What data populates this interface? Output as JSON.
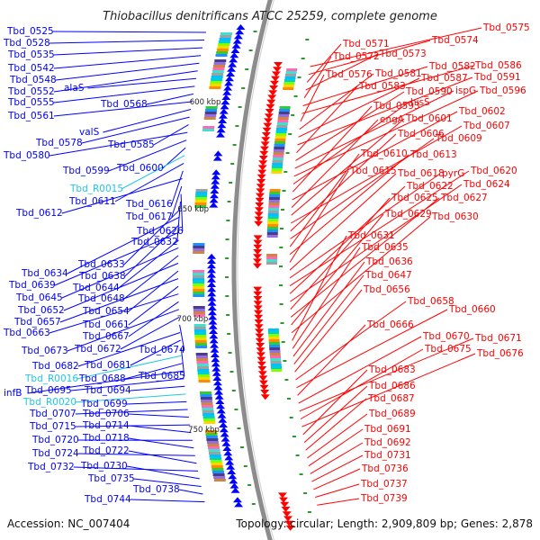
{
  "title": "Thiobacillus denitrificans ATCC 25259, complete genome",
  "footer": {
    "accession": "Accession: NC_007404",
    "topology": "Topology: circular; Length: 2,909,809 bp; Genes: 2,878"
  },
  "kbp_markers": [
    "600 kbp",
    "650 kbp",
    "700 kbp",
    "750 kbp"
  ],
  "colors": {
    "plus_strand": "#ff0000",
    "minus_strand": "#0000ff",
    "rna": "#1ec8e6",
    "ring": "#8c8c8c",
    "tick": "#2a9a2a"
  },
  "labels_left": [
    {
      "text": "Tbd_0525",
      "rna": false
    },
    {
      "text": "Tbd_0528",
      "rna": false
    },
    {
      "text": "Tbd_0535",
      "rna": false
    },
    {
      "text": "Tbd_0542",
      "rna": false
    },
    {
      "text": "Tbd_0548",
      "rna": false
    },
    {
      "text": "Tbd_0552",
      "rna": false
    },
    {
      "text": "alaS",
      "rna": false
    },
    {
      "text": "Tbd_0555",
      "rna": false
    },
    {
      "text": "Tbd_0568",
      "rna": false
    },
    {
      "text": "Tbd_0561",
      "rna": false
    },
    {
      "text": "valS",
      "rna": false
    },
    {
      "text": "Tbd_0578",
      "rna": false
    },
    {
      "text": "Tbd_0585",
      "rna": false
    },
    {
      "text": "Tbd_0580",
      "rna": false
    },
    {
      "text": "Tbd_0599",
      "rna": false
    },
    {
      "text": "Tbd_0600",
      "rna": false
    },
    {
      "text": "Tbd_R0015",
      "rna": true
    },
    {
      "text": "Tbd_0611",
      "rna": false
    },
    {
      "text": "Tbd_0616",
      "rna": false
    },
    {
      "text": "Tbd_0612",
      "rna": false
    },
    {
      "text": "Tbd_0617",
      "rna": false
    },
    {
      "text": "Tbd_0626",
      "rna": false
    },
    {
      "text": "Tbd_0632",
      "rna": false
    },
    {
      "text": "Tbd_0633",
      "rna": false
    },
    {
      "text": "Tbd_0634",
      "rna": false
    },
    {
      "text": "Tbd_0638",
      "rna": false
    },
    {
      "text": "Tbd_0639",
      "rna": false
    },
    {
      "text": "Tbd_0644",
      "rna": false
    },
    {
      "text": "Tbd_0645",
      "rna": false
    },
    {
      "text": "Tbd_0648",
      "rna": false
    },
    {
      "text": "Tbd_0652",
      "rna": false
    },
    {
      "text": "Tbd_0654",
      "rna": false
    },
    {
      "text": "Tbd_0657",
      "rna": false
    },
    {
      "text": "Tbd_0661",
      "rna": false
    },
    {
      "text": "Tbd_0663",
      "rna": false
    },
    {
      "text": "Tbd_0667",
      "rna": false
    },
    {
      "text": "Tbd_0673",
      "rna": false
    },
    {
      "text": "Tbd_0672",
      "rna": false
    },
    {
      "text": "Tbd_0674",
      "rna": false
    },
    {
      "text": "Tbd_0682",
      "rna": false
    },
    {
      "text": "Tbd_0681",
      "rna": false
    },
    {
      "text": "Tbd_0685",
      "rna": false
    },
    {
      "text": "Tbd_R0016",
      "rna": true
    },
    {
      "text": "Tbd_0688",
      "rna": false
    },
    {
      "text": "infB",
      "rna": false
    },
    {
      "text": "Tbd_0695",
      "rna": false
    },
    {
      "text": "Tbd_0694",
      "rna": false
    },
    {
      "text": "Tbd_R0020",
      "rna": true
    },
    {
      "text": "Tbd_0699",
      "rna": false
    },
    {
      "text": "Tbd_0707",
      "rna": false
    },
    {
      "text": "Tbd_0706",
      "rna": false
    },
    {
      "text": "Tbd_0715",
      "rna": false
    },
    {
      "text": "Tbd_0714",
      "rna": false
    },
    {
      "text": "Tbd_0720",
      "rna": false
    },
    {
      "text": "Tbd_0718",
      "rna": false
    },
    {
      "text": "Tbd_0724",
      "rna": false
    },
    {
      "text": "Tbd_0722",
      "rna": false
    },
    {
      "text": "Tbd_0732",
      "rna": false
    },
    {
      "text": "Tbd_0730",
      "rna": false
    },
    {
      "text": "Tbd_0735",
      "rna": false
    },
    {
      "text": "Tbd_0738",
      "rna": false
    },
    {
      "text": "Tbd_0744",
      "rna": false
    }
  ],
  "labels_right": [
    "Tbd_0575",
    "Tbd_0574",
    "Tbd_0571",
    "Tbd_0573",
    "Tbd_0572",
    "Tbd_0582",
    "Tbd_0586",
    "Tbd_0576",
    "Tbd_0581",
    "Tbd_0587",
    "Tbd_0591",
    "Tbd_0583",
    "Tbd_0590",
    "ispG",
    "Tbd_0596",
    "hisS",
    "Tbd_0593",
    "Tbd_0602",
    "engA",
    "Tbd_0601",
    "Tbd_0607",
    "Tbd_0606",
    "Tbd_0609",
    "Tbd_0610",
    "Tbd_0613",
    "Tbd_0615",
    "Tbd_0618",
    "pyrG",
    "Tbd_0620",
    "Tbd_0622",
    "Tbd_0624",
    "Tbd_0625",
    "Tbd_0627",
    "Tbd_0629",
    "Tbd_0630",
    "Tbd_0631",
    "Tbd_0635",
    "Tbd_0636",
    "Tbd_0647",
    "Tbd_0656",
    "Tbd_0658",
    "Tbd_0660",
    "Tbd_0666",
    "Tbd_0670",
    "Tbd_0671",
    "Tbd_0675",
    "Tbd_0676",
    "Tbd_0683",
    "Tbd_0686",
    "Tbd_0687",
    "Tbd_0689",
    "Tbd_0691",
    "Tbd_0692",
    "Tbd_0731",
    "Tbd_0736",
    "Tbd_0737",
    "Tbd_0739"
  ]
}
